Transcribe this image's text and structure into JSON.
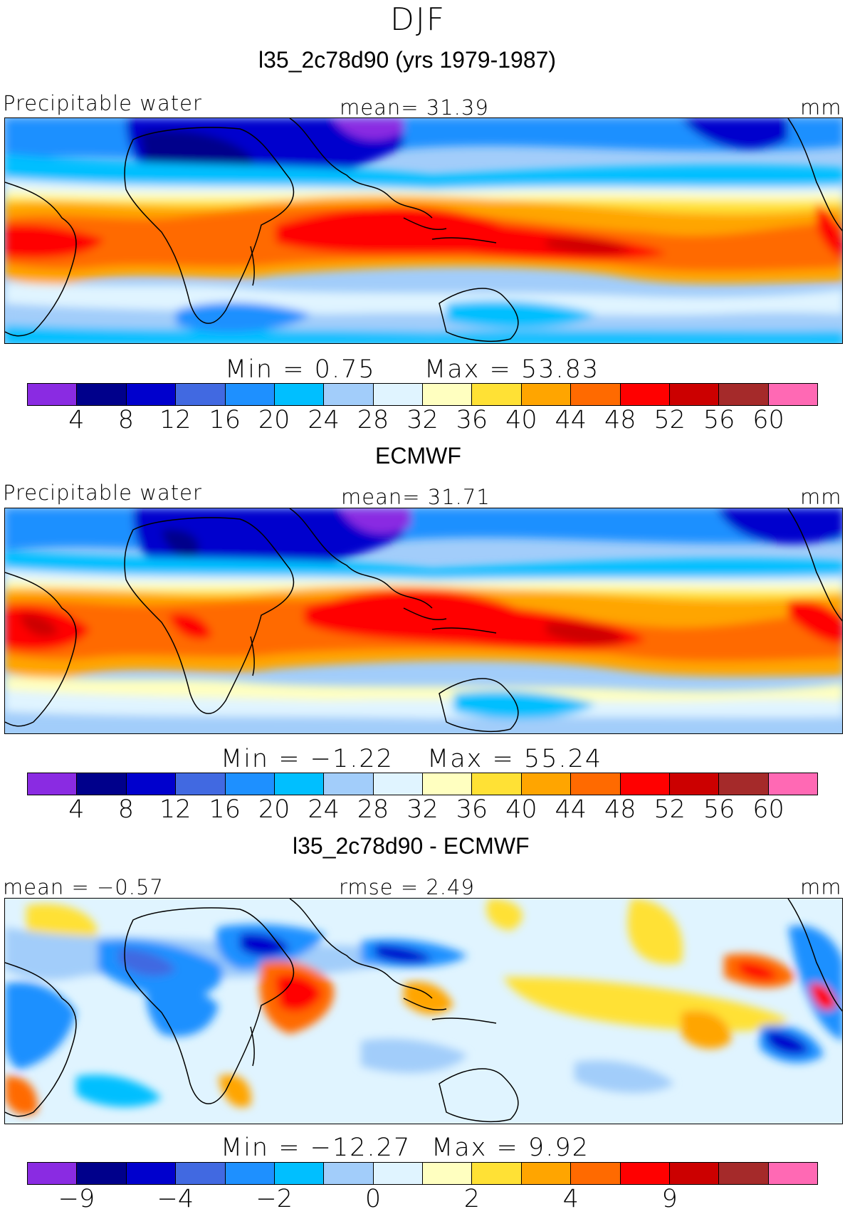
{
  "figure": {
    "season": "DJF"
  },
  "colorbar_colors": [
    "#8a2be2",
    "#00008b",
    "#0000cd",
    "#4169e1",
    "#1e90ff",
    "#00bfff",
    "#a2cdfa",
    "#e0f4ff",
    "#ffffc0",
    "#ffe135",
    "#ffa500",
    "#ff6a00",
    "#ff0000",
    "#cc0000",
    "#a52a2a",
    "#ff69b4"
  ],
  "panels": [
    {
      "id": "model",
      "title": "l35_2c78d90 (yrs 1979-1987)",
      "field_label": "Precipitable water",
      "stat_label": "mean=  31.39",
      "units": "mm",
      "min_text": "Min =   0.75",
      "max_text": "Max =   53.83",
      "ticks": [
        "4",
        "8",
        "12",
        "16",
        "20",
        "24",
        "28",
        "32",
        "36",
        "40",
        "44",
        "48",
        "52",
        "56",
        "60"
      ],
      "map_type": "abs"
    },
    {
      "id": "obs",
      "title": "ECMWF",
      "field_label": "Precipitable water",
      "stat_label": "mean=  31.71",
      "units": "mm",
      "min_text": "Min =  −1.22",
      "max_text": "Max =   55.24",
      "ticks": [
        "4",
        "8",
        "12",
        "16",
        "20",
        "24",
        "28",
        "32",
        "36",
        "40",
        "44",
        "48",
        "52",
        "56",
        "60"
      ],
      "map_type": "abs"
    },
    {
      "id": "diff",
      "title": "l35_2c78d90 - ECMWF",
      "field_label": "mean =  −0.57",
      "stat_label": "rmse =   2.49",
      "units": "mm",
      "min_text": "Min = −12.27",
      "max_text": "Max =    9.92",
      "ticks": [
        "−9",
        "",
        "−4",
        "",
        "−2",
        "",
        "0",
        "",
        "2",
        "",
        "4",
        "",
        "9"
      ],
      "map_type": "diff"
    }
  ]
}
